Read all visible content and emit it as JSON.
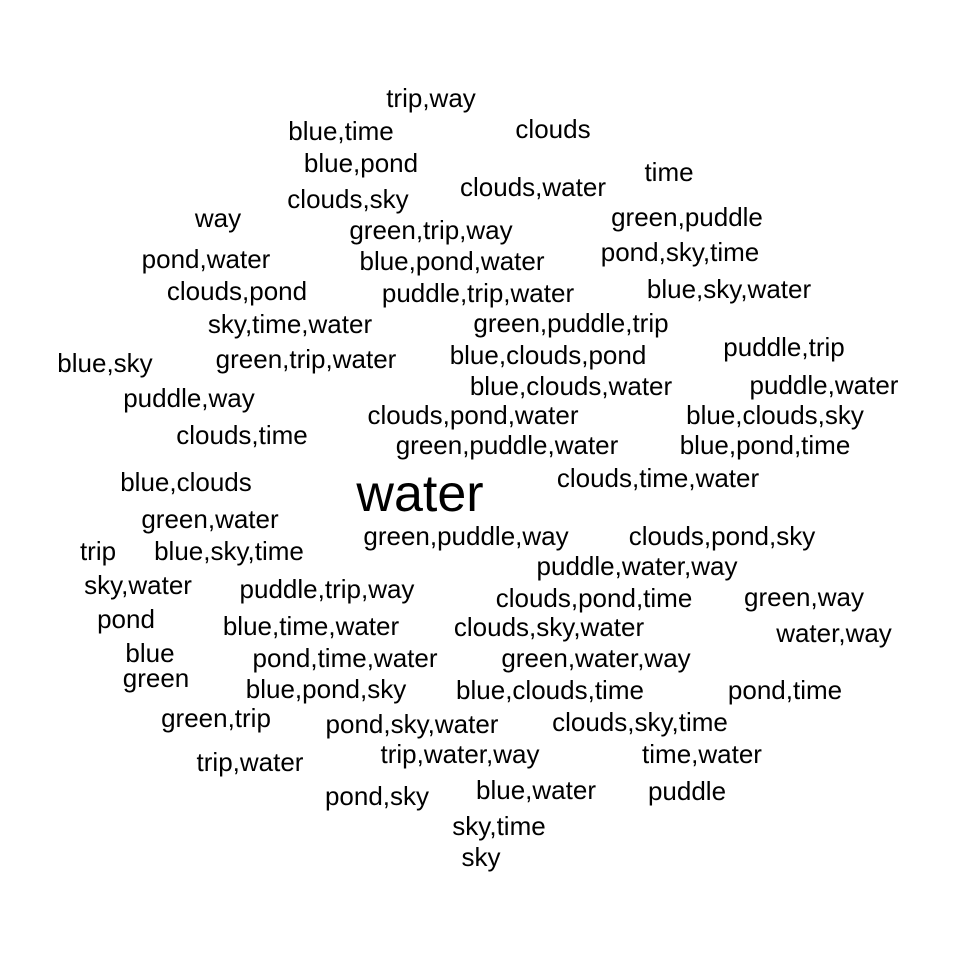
{
  "chart_data": {
    "type": "wordcloud",
    "text_color": "#000000",
    "background": "#ffffff",
    "words": [
      {
        "text": "water",
        "weight": 2
      },
      {
        "text": "trip,way",
        "weight": 1
      },
      {
        "text": "blue,time",
        "weight": 1
      },
      {
        "text": "clouds",
        "weight": 1
      },
      {
        "text": "blue,pond",
        "weight": 1
      },
      {
        "text": "time",
        "weight": 1
      },
      {
        "text": "clouds,sky",
        "weight": 1
      },
      {
        "text": "clouds,water",
        "weight": 1
      },
      {
        "text": "way",
        "weight": 1
      },
      {
        "text": "green,puddle",
        "weight": 1
      },
      {
        "text": "green,trip,way",
        "weight": 1
      },
      {
        "text": "pond,water",
        "weight": 1
      },
      {
        "text": "blue,pond,water",
        "weight": 1
      },
      {
        "text": "pond,sky,time",
        "weight": 1
      },
      {
        "text": "clouds,pond",
        "weight": 1
      },
      {
        "text": "puddle,trip,water",
        "weight": 1
      },
      {
        "text": "blue,sky,water",
        "weight": 1
      },
      {
        "text": "sky,time,water",
        "weight": 1
      },
      {
        "text": "green,puddle,trip",
        "weight": 1
      },
      {
        "text": "blue,sky",
        "weight": 1
      },
      {
        "text": "green,trip,water",
        "weight": 1
      },
      {
        "text": "blue,clouds,pond",
        "weight": 1
      },
      {
        "text": "puddle,trip",
        "weight": 1
      },
      {
        "text": "blue,clouds,water",
        "weight": 1
      },
      {
        "text": "puddle,water",
        "weight": 1
      },
      {
        "text": "puddle,way",
        "weight": 1
      },
      {
        "text": "clouds,pond,water",
        "weight": 1
      },
      {
        "text": "blue,clouds,sky",
        "weight": 1
      },
      {
        "text": "clouds,time",
        "weight": 1
      },
      {
        "text": "green,puddle,water",
        "weight": 1
      },
      {
        "text": "blue,pond,time",
        "weight": 1
      },
      {
        "text": "blue,clouds",
        "weight": 1
      },
      {
        "text": "clouds,time,water",
        "weight": 1
      },
      {
        "text": "green,water",
        "weight": 1
      },
      {
        "text": "green,puddle,way",
        "weight": 1
      },
      {
        "text": "clouds,pond,sky",
        "weight": 1
      },
      {
        "text": "trip",
        "weight": 1
      },
      {
        "text": "blue,sky,time",
        "weight": 1
      },
      {
        "text": "puddle,water,way",
        "weight": 1
      },
      {
        "text": "sky,water",
        "weight": 1
      },
      {
        "text": "puddle,trip,way",
        "weight": 1
      },
      {
        "text": "clouds,pond,time",
        "weight": 1
      },
      {
        "text": "green,way",
        "weight": 1
      },
      {
        "text": "pond",
        "weight": 1
      },
      {
        "text": "blue,time,water",
        "weight": 1
      },
      {
        "text": "clouds,sky,water",
        "weight": 1
      },
      {
        "text": "water,way",
        "weight": 1
      },
      {
        "text": "blue",
        "weight": 1
      },
      {
        "text": "pond,time,water",
        "weight": 1
      },
      {
        "text": "green,water,way",
        "weight": 1
      },
      {
        "text": "green",
        "weight": 1
      },
      {
        "text": "blue,pond,sky",
        "weight": 1
      },
      {
        "text": "blue,clouds,time",
        "weight": 1
      },
      {
        "text": "pond,time",
        "weight": 1
      },
      {
        "text": "green,trip",
        "weight": 1
      },
      {
        "text": "pond,sky,water",
        "weight": 1
      },
      {
        "text": "clouds,sky,time",
        "weight": 1
      },
      {
        "text": "trip,water",
        "weight": 1
      },
      {
        "text": "trip,water,way",
        "weight": 1
      },
      {
        "text": "time,water",
        "weight": 1
      },
      {
        "text": "pond,sky",
        "weight": 1
      },
      {
        "text": "blue,water",
        "weight": 1
      },
      {
        "text": "puddle",
        "weight": 1
      },
      {
        "text": "sky,time",
        "weight": 1
      },
      {
        "text": "sky",
        "weight": 1
      }
    ]
  }
}
